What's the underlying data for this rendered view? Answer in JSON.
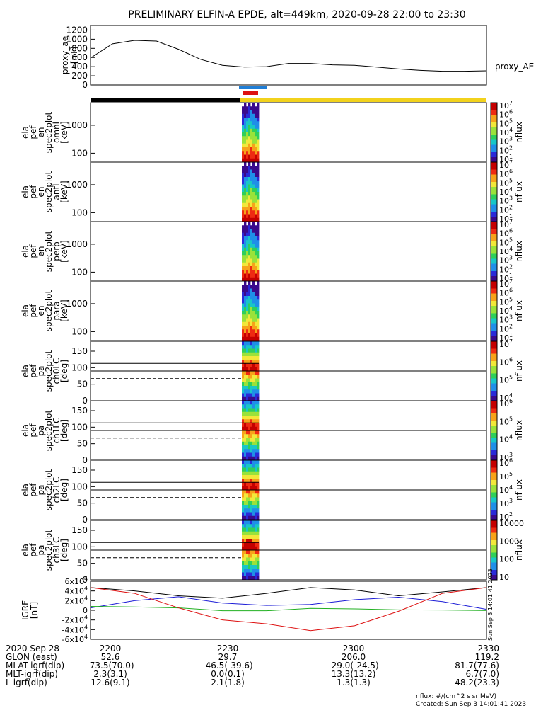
{
  "title": "PRELIMINARY ELFIN-A EPDE, alt=449km, 2020-09-28 22:00 to 23:30",
  "chart_data": [
    {
      "type": "line",
      "id": "proxy_ae",
      "ylabel_lines": [
        "proxy_ae",
        "[nT]"
      ],
      "right_label": "proxy_AE",
      "yticks": [
        "0",
        "200",
        "400",
        "600",
        "800",
        "1000",
        "1200"
      ],
      "ylim": [
        0,
        1300
      ],
      "x_minutes": [
        0,
        5,
        10,
        15,
        20,
        25,
        30,
        35,
        40,
        45,
        50,
        55,
        60,
        65,
        70,
        75,
        80,
        85,
        90
      ],
      "values": [
        590,
        900,
        975,
        960,
        780,
        560,
        430,
        390,
        400,
        470,
        470,
        440,
        430,
        390,
        350,
        320,
        300,
        300,
        310
      ]
    },
    {
      "type": "heatmap",
      "id": "omni",
      "ylabel_lines": [
        "ela",
        "pef",
        "en",
        "spec2plot",
        "omni",
        "[keV]"
      ],
      "yticks": [
        "100",
        "1000"
      ],
      "cbar_label": "nflux",
      "cbar_ticks": [
        "10^1",
        "10^2",
        "10^3",
        "10^4",
        "10^5",
        "10^6",
        "10^7"
      ]
    },
    {
      "type": "heatmap",
      "id": "anti",
      "ylabel_lines": [
        "ela",
        "pef",
        "en",
        "spec2plot",
        "anti",
        "[keV]"
      ],
      "yticks": [
        "100",
        "1000"
      ],
      "cbar_label": "nflux",
      "cbar_ticks": [
        "10^1",
        "10^2",
        "10^3",
        "10^4",
        "10^5",
        "10^6",
        "10^7"
      ]
    },
    {
      "type": "heatmap",
      "id": "perp",
      "ylabel_lines": [
        "ela",
        "pef",
        "en",
        "spec2plot",
        "perp",
        "[keV]"
      ],
      "yticks": [
        "100",
        "1000"
      ],
      "cbar_label": "nflux",
      "cbar_ticks": [
        "10^1",
        "10^2",
        "10^3",
        "10^4",
        "10^5",
        "10^6",
        "10^7"
      ]
    },
    {
      "type": "heatmap",
      "id": "para",
      "ylabel_lines": [
        "ela",
        "pef",
        "en",
        "spec2plot",
        "para",
        "[keV]"
      ],
      "yticks": [
        "100",
        "1000"
      ],
      "cbar_label": "nflux",
      "cbar_ticks": [
        "10^1",
        "10^2",
        "10^3",
        "10^4",
        "10^5",
        "10^6",
        "10^7"
      ]
    },
    {
      "type": "heatmap",
      "id": "ch0LC",
      "ylabel_lines": [
        "ela",
        "pef",
        "pa",
        "spec2plot",
        "ch0LC",
        "[deg]"
      ],
      "yticks": [
        "0",
        "50",
        "100",
        "150"
      ],
      "ylim": [
        0,
        180
      ],
      "lc_lines": [
        113,
        90,
        67
      ],
      "cbar_label": "nflux",
      "cbar_ticks": [
        "10^4",
        "10^5",
        "10^6",
        "10^7"
      ]
    },
    {
      "type": "heatmap",
      "id": "ch1LC",
      "ylabel_lines": [
        "ela",
        "pef",
        "pa",
        "spec2plot",
        "ch1LC",
        "[deg]"
      ],
      "yticks": [
        "0",
        "50",
        "100",
        "150"
      ],
      "ylim": [
        0,
        180
      ],
      "lc_lines": [
        113,
        90,
        67
      ],
      "cbar_label": "nflux",
      "cbar_ticks": [
        "10^3",
        "10^4",
        "10^5",
        "10^6"
      ]
    },
    {
      "type": "heatmap",
      "id": "ch2LC",
      "ylabel_lines": [
        "ela",
        "pef",
        "pa",
        "spec2plot",
        "ch2LC",
        "[deg]"
      ],
      "yticks": [
        "0",
        "50",
        "100",
        "150"
      ],
      "ylim": [
        0,
        180
      ],
      "lc_lines": [
        113,
        90,
        67
      ],
      "cbar_label": "nflux",
      "cbar_ticks": [
        "10^2",
        "10^3",
        "10^4",
        "10^5",
        "10^6"
      ]
    },
    {
      "type": "heatmap",
      "id": "ch3LC",
      "ylabel_lines": [
        "ela",
        "pef",
        "pa",
        "spec2plot",
        "ch3LC",
        "[deg]"
      ],
      "yticks": [
        "0",
        "50",
        "100",
        "150"
      ],
      "ylim": [
        0,
        180
      ],
      "lc_lines": [
        113,
        90,
        67
      ],
      "cbar_label": "nflux",
      "cbar_ticks": [
        "10",
        "100",
        "1000",
        "10000"
      ]
    },
    {
      "type": "line",
      "id": "igrf",
      "ylabel_lines": [
        "IGRF",
        "[nT]"
      ],
      "yticks": [
        "6x10^4",
        "4x10^4",
        "2x10^4",
        "0",
        "-2x10^4",
        "-4x10^4",
        "-6x10^4"
      ],
      "ylim": [
        -60000,
        60000
      ],
      "series": [
        {
          "color": "#000000",
          "x_minutes": [
            0,
            10,
            20,
            30,
            40,
            50,
            60,
            70,
            80,
            90
          ],
          "values": [
            47000,
            40000,
            30000,
            25000,
            35000,
            47000,
            42000,
            30000,
            38000,
            47000
          ]
        },
        {
          "color": "#1b1bd6",
          "x_minutes": [
            0,
            10,
            20,
            30,
            40,
            50,
            60,
            70,
            80,
            90
          ],
          "values": [
            5000,
            20000,
            28000,
            15000,
            10000,
            12000,
            22000,
            27000,
            18000,
            2000
          ]
        },
        {
          "color": "#22b022",
          "x_minutes": [
            0,
            10,
            20,
            30,
            40,
            50,
            60,
            70,
            80,
            90
          ],
          "values": [
            8000,
            7000,
            5000,
            -1000,
            -1000,
            4000,
            3000,
            1000,
            500,
            -500
          ]
        },
        {
          "color": "#dd1111",
          "x_minutes": [
            0,
            10,
            20,
            30,
            40,
            50,
            60,
            70,
            80,
            90
          ],
          "values": [
            47000,
            35000,
            5000,
            -20000,
            -28000,
            -42000,
            -32000,
            -2000,
            35000,
            47000
          ]
        }
      ]
    }
  ],
  "bars": {
    "blue_bar": "#1f7ed6",
    "red_bar": "#dd1111",
    "black_segment": "#000000",
    "yellow_segment": "#f2d21c"
  },
  "footer": {
    "rows": [
      [
        "2020 Sep 28",
        "2200",
        "2230",
        "2300",
        "2330"
      ],
      [
        "GLON (east)",
        "52.6",
        "29.7",
        "206.0",
        "119.2"
      ],
      [
        "MLAT-igrf(dip)",
        "-73.5(70.0)",
        "-46.5(-39.6)",
        "-29.0(-24.5)",
        "81.7(77.6)"
      ],
      [
        "MLT-igrf(dip)",
        "2.3(3.1)",
        "0.0(0.1)",
        "13.3(13.2)",
        "6.7(7.0)"
      ],
      [
        "L-igrf(dip)",
        "12.6(9.1)",
        "2.1(1.8)",
        "1.3(1.3)",
        "48.2(23.3)"
      ]
    ],
    "units": "nflux: #/(cm^2 s sr MeV)",
    "created": "Created: Sun Sep  3 14:01:41 2023",
    "side_stamp": "Sun Sep  3 14:01:41 2023"
  }
}
